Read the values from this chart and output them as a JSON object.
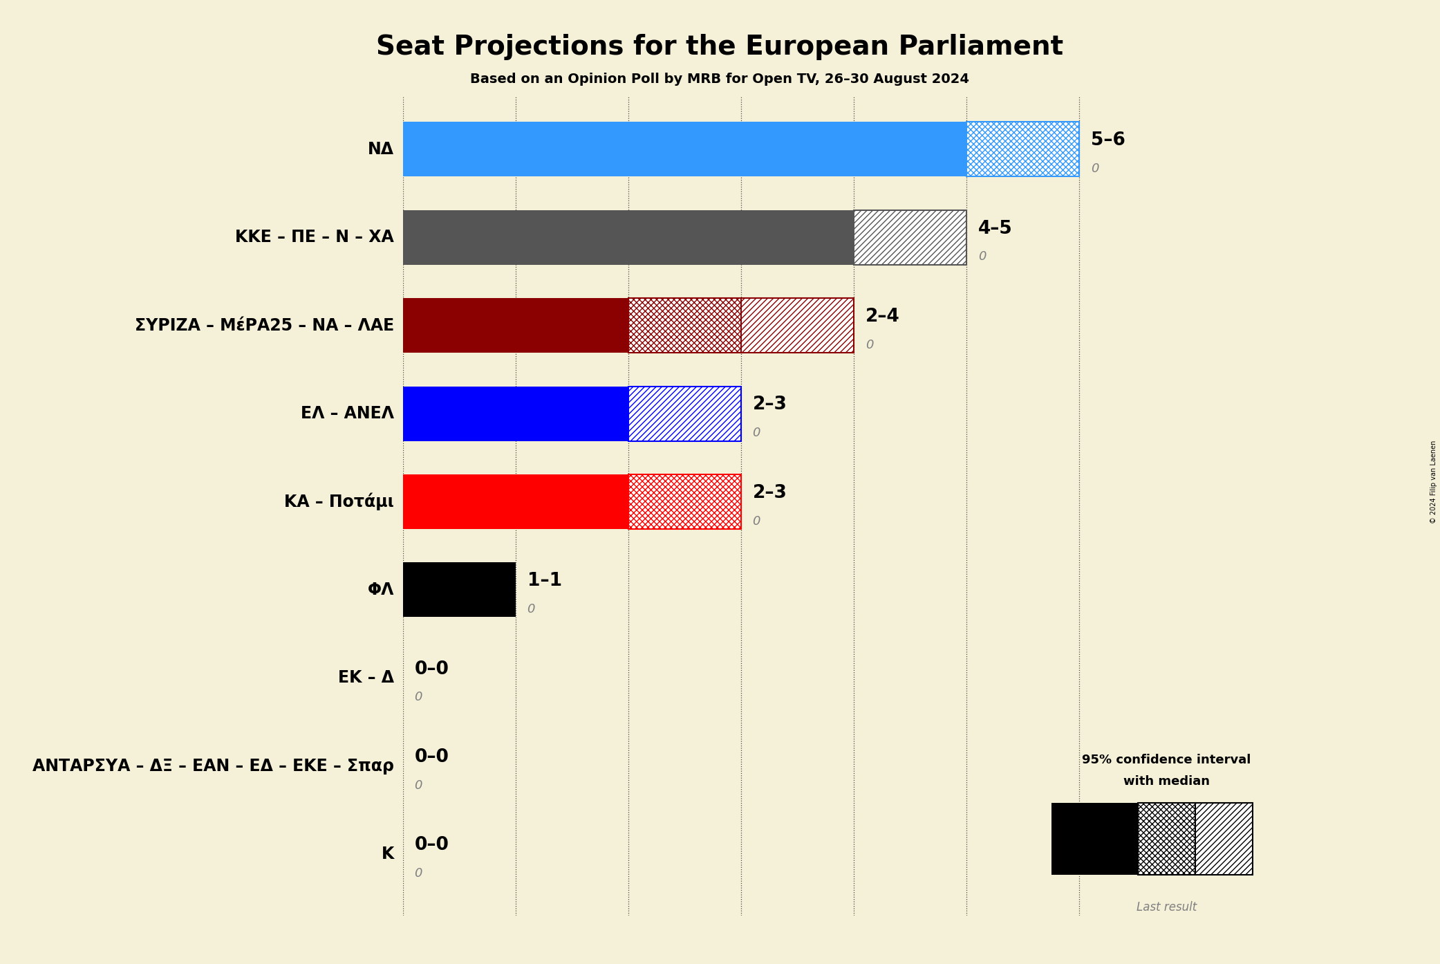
{
  "title": "Seat Projections for the European Parliament",
  "subtitle": "Based on an Opinion Poll by MRB for Open TV, 26–30 August 2024",
  "copyright": "© 2024 Filip van Laenen",
  "background_color": "#f5f0d8",
  "parties": [
    "ΝΔ",
    "ΚΚΕ – ΠΕ – Ν – ΧΑ",
    "ΣΥΡΙΖΑ – ΜέΡΑ25 – ΝΑ – ΛΑΕ",
    "ΕΛ – ΑΝΕΛ",
    "ΚΑ – Ποτάμι",
    "ΦΛ",
    "ΕΚ – Δ",
    "ΑΝΤΑΡΣΥΑ – ΔΞ – ΕΑΝ – ΕΔ – ΕΚΕ – Σπαρ",
    "Κ"
  ],
  "median": [
    5,
    4,
    2,
    2,
    2,
    1,
    0,
    0,
    0
  ],
  "high": [
    6,
    5,
    4,
    3,
    3,
    1,
    0,
    0,
    0
  ],
  "last_result": [
    0,
    0,
    0,
    0,
    0,
    0,
    0,
    0,
    0
  ],
  "label": [
    "5–6",
    "4–5",
    "2–4",
    "2–3",
    "2–3",
    "1–1",
    "0–0",
    "0–0",
    "0–0"
  ],
  "colors": [
    "#3399ff",
    "#555555",
    "#8b0000",
    "#0000ff",
    "#ff0000",
    "#000000",
    "#000000",
    "#000000",
    "#000000"
  ],
  "xlim_max": 6.0,
  "bar_height": 0.62,
  "fontsize_party": 17,
  "fontsize_label": 19,
  "fontsize_title": 28,
  "fontsize_subtitle": 14
}
